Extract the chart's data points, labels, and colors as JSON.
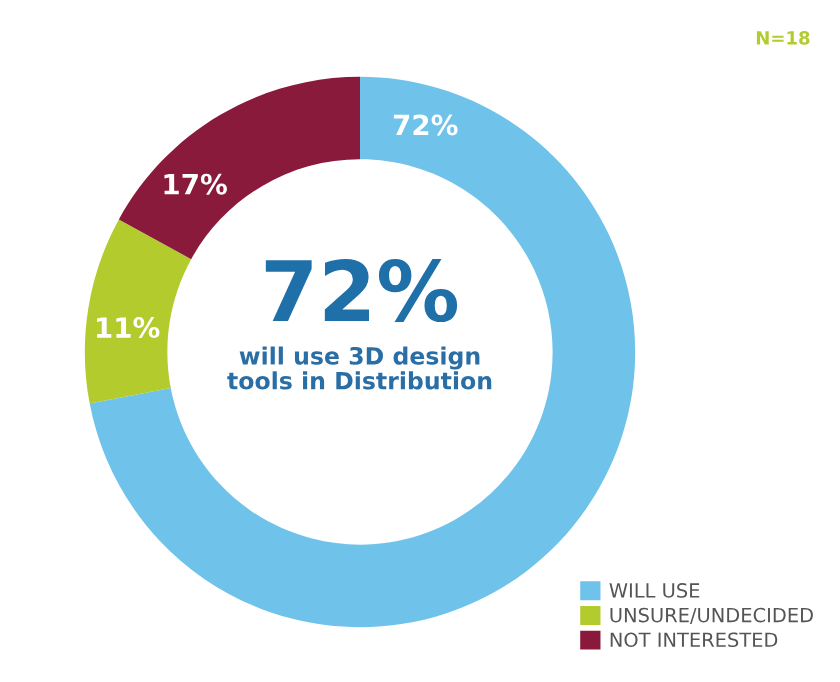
{
  "chart_data": {
    "type": "donut",
    "categories": [
      "WILL USE",
      "UNSURE/UNDECIDED",
      "NOT INTERESTED"
    ],
    "values": [
      72,
      11,
      17
    ],
    "colors": [
      "#6fc3ea",
      "#b3cb2d",
      "#8a1a3b"
    ],
    "value_labels": [
      "72%",
      "11%",
      "17%"
    ],
    "annotations": [
      "72%",
      "will use 3D design\ntools in Distribution",
      "N=18"
    ],
    "legend": "bottom right"
  }
}
